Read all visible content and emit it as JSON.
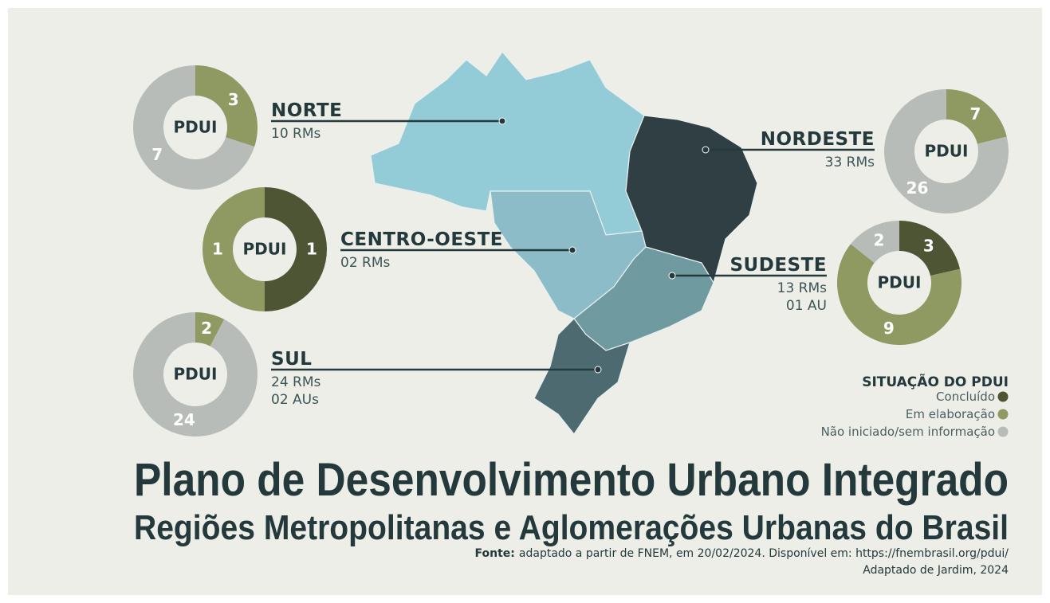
{
  "legend": {
    "title": "SITUAÇÃO DO PDUI",
    "categories": [
      "Concluído",
      "Em elaboração",
      "Não iniciado/sem informação"
    ],
    "colors": [
      "#4d5535",
      "#8f9a63",
      "#b7bcb9"
    ]
  },
  "chart_data": [
    {
      "type": "pie",
      "title": "NORTE",
      "subtitle": [
        "10 RMs"
      ],
      "center_label": "PDUI",
      "values": [
        0,
        3,
        7
      ]
    },
    {
      "type": "pie",
      "title": "CENTRO-OESTE",
      "subtitle": [
        "02 RMs"
      ],
      "center_label": "PDUI",
      "values": [
        1,
        1,
        0
      ]
    },
    {
      "type": "pie",
      "title": "SUL",
      "subtitle": [
        "24 RMs",
        "02 AUs"
      ],
      "center_label": "PDUI",
      "values": [
        0,
        2,
        24
      ]
    },
    {
      "type": "pie",
      "title": "NORDESTE",
      "subtitle": [
        "33 RMs"
      ],
      "center_label": "PDUI",
      "values": [
        0,
        7,
        26
      ]
    },
    {
      "type": "pie",
      "title": "SUDESTE",
      "subtitle": [
        "13 RMs",
        "01 AU"
      ],
      "center_label": "PDUI",
      "values": [
        3,
        9,
        2
      ]
    }
  ],
  "title": "Plano de Desenvolvimento Urbano Integrado",
  "subtitle": "Regiões Metropolitanas e Aglomerações Urbanas do Brasil",
  "source_label": "Fonte:",
  "source": "adaptado a partir de FNEM, em 20/02/2024. Disponível em: https://fnembrasil.org/pdui/",
  "credit": "Adaptado de Jardim, 2024"
}
